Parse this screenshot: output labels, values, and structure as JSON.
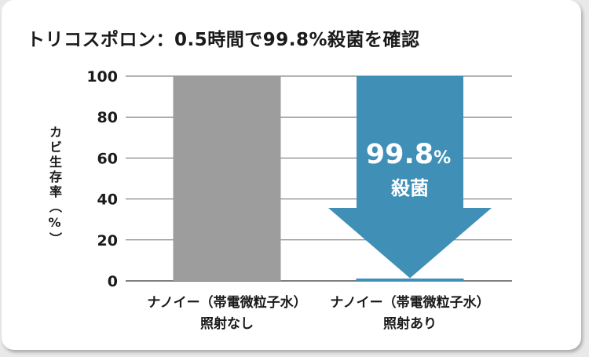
{
  "chart_data": {
    "type": "bar",
    "title": "トリコスポロン：0.5時間で99.8%殺菌を確認",
    "ylabel": "カビ生存率（%）",
    "ylim": [
      0,
      100
    ],
    "yticks": [
      0,
      20,
      40,
      60,
      80,
      100
    ],
    "categories": [
      [
        "ナノイー（帯電微粒子水）",
        "照射なし"
      ],
      [
        "ナノイー（帯電微粒子水）",
        "照射あり"
      ]
    ],
    "values": [
      100,
      0.2
    ],
    "bar_colors": [
      "#9d9d9e",
      "#3f8fb7"
    ],
    "grid": true,
    "annotation": {
      "value": "99.8",
      "unit": "%",
      "text": "殺菌",
      "color": "#3f8fb7"
    }
  }
}
